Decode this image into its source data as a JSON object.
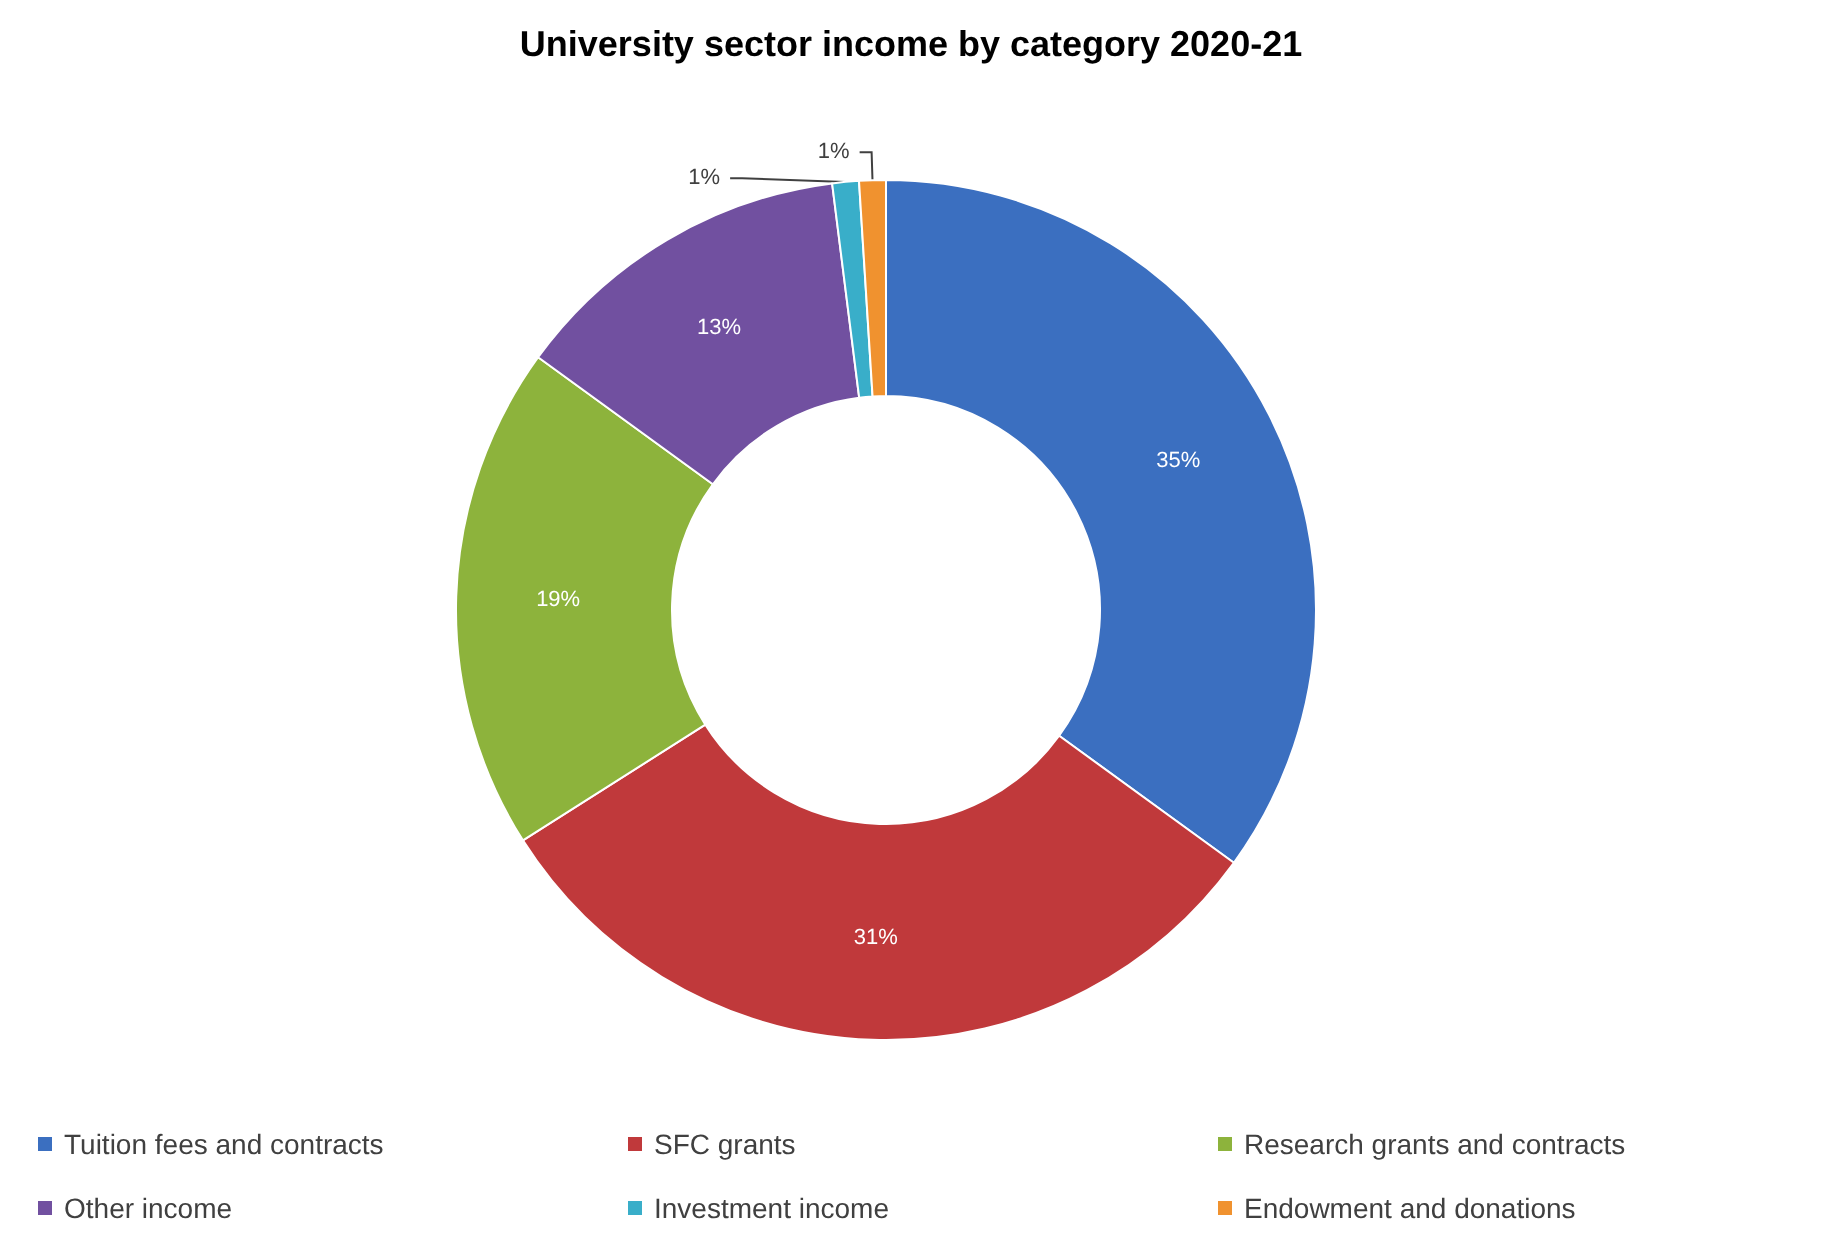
{
  "chart_data": {
    "type": "donut",
    "title": "University sector income by category 2020-21",
    "categories": [
      "Tuition fees and contracts",
      "SFC grants",
      "Research grants and contracts",
      "Other income",
      "Investment income",
      "Endowment and donations"
    ],
    "values": [
      35,
      31,
      19,
      13,
      1,
      1
    ],
    "value_labels": [
      "35%",
      "31%",
      "19%",
      "13%",
      "1%",
      "1%"
    ],
    "colors": [
      "#3b6fc0",
      "#c0393b",
      "#8db33c",
      "#7150a0",
      "#39aec9",
      "#f0922f"
    ],
    "legend": "bottom"
  }
}
